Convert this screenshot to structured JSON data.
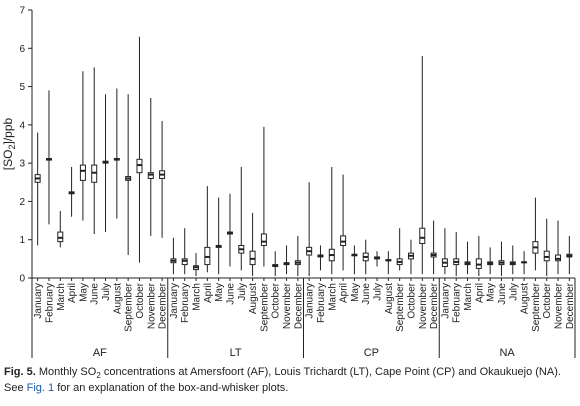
{
  "chart_data": {
    "type": "box",
    "y_label": {
      "before": "[SO",
      "sub": "2",
      "after": "]/ppb"
    },
    "ylim": [
      0,
      7
    ],
    "yticks": [
      0,
      1,
      2,
      3,
      4,
      5,
      6,
      7
    ],
    "groups": [
      {
        "name": "AF",
        "categories": [
          "January",
          "February",
          "March",
          "April",
          "May",
          "June",
          "July",
          "August",
          "September",
          "October",
          "November",
          "December"
        ],
        "low": [
          0.85,
          1.4,
          0.8,
          1.6,
          1.5,
          1.15,
          1.2,
          1.55,
          0.6,
          0.4,
          1.1,
          1.05
        ],
        "q1": [
          2.5,
          3.08,
          0.95,
          2.2,
          2.55,
          2.5,
          3.0,
          3.08,
          2.55,
          2.75,
          2.6,
          2.6
        ],
        "median": [
          2.6,
          3.1,
          1.05,
          2.22,
          2.8,
          2.75,
          3.02,
          3.1,
          2.6,
          2.95,
          2.7,
          2.7
        ],
        "q3": [
          2.7,
          3.12,
          1.2,
          2.25,
          2.95,
          2.95,
          3.05,
          3.12,
          2.65,
          3.1,
          2.75,
          2.8
        ],
        "high": [
          3.8,
          4.9,
          1.75,
          2.9,
          5.4,
          5.5,
          4.8,
          4.95,
          4.8,
          6.3,
          4.7,
          4.1
        ]
      },
      {
        "name": "LT",
        "categories": [
          "January",
          "February",
          "March",
          "April",
          "May",
          "June",
          "July",
          "August",
          "September",
          "October",
          "November",
          "December"
        ],
        "low": [
          0.1,
          0.1,
          0.05,
          0.15,
          0.1,
          0.3,
          0.2,
          0.05,
          0.3,
          0.05,
          0.1,
          0.05
        ],
        "q1": [
          0.4,
          0.35,
          0.22,
          0.35,
          0.8,
          1.15,
          0.65,
          0.35,
          0.85,
          0.3,
          0.35,
          0.35
        ],
        "median": [
          0.45,
          0.45,
          0.28,
          0.55,
          0.82,
          1.18,
          0.75,
          0.5,
          0.95,
          0.32,
          0.38,
          0.4
        ],
        "q3": [
          0.5,
          0.5,
          0.32,
          0.8,
          0.85,
          1.2,
          0.85,
          0.7,
          1.15,
          0.35,
          0.4,
          0.45
        ],
        "high": [
          1.05,
          1.3,
          0.65,
          2.4,
          2.1,
          2.2,
          2.9,
          1.7,
          3.95,
          0.7,
          0.85,
          1.1
        ]
      },
      {
        "name": "CP",
        "categories": [
          "January",
          "February",
          "March",
          "April",
          "May",
          "June",
          "July",
          "August",
          "September",
          "October",
          "November",
          "December"
        ],
        "low": [
          0.05,
          0.2,
          0.1,
          0.2,
          0.1,
          0.1,
          0.3,
          0.1,
          0.2,
          0.1,
          0.1,
          0.1
        ],
        "q1": [
          0.6,
          0.55,
          0.45,
          0.85,
          0.58,
          0.45,
          0.5,
          0.45,
          0.35,
          0.5,
          0.9,
          0.55
        ],
        "median": [
          0.7,
          0.58,
          0.6,
          0.95,
          0.6,
          0.55,
          0.52,
          0.46,
          0.42,
          0.58,
          1.05,
          0.6
        ],
        "q3": [
          0.8,
          0.6,
          0.75,
          1.1,
          0.62,
          0.65,
          0.55,
          0.48,
          0.5,
          0.65,
          1.3,
          0.65
        ],
        "high": [
          2.5,
          0.85,
          2.9,
          2.7,
          0.85,
          1.0,
          0.7,
          0.7,
          1.3,
          1.0,
          5.8,
          1.5
        ]
      },
      {
        "name": "NA",
        "categories": [
          "January",
          "February",
          "March",
          "April",
          "May",
          "June",
          "July",
          "August",
          "September",
          "October",
          "November",
          "December"
        ],
        "low": [
          0.1,
          0.05,
          0.1,
          0.05,
          0.1,
          0.05,
          0.1,
          0.1,
          0.2,
          0.05,
          0.1,
          0.1
        ],
        "q1": [
          0.3,
          0.35,
          0.35,
          0.25,
          0.35,
          0.35,
          0.35,
          0.4,
          0.65,
          0.45,
          0.45,
          0.55
        ],
        "median": [
          0.4,
          0.42,
          0.38,
          0.35,
          0.38,
          0.4,
          0.38,
          0.41,
          0.8,
          0.55,
          0.5,
          0.58
        ],
        "q3": [
          0.5,
          0.5,
          0.42,
          0.5,
          0.42,
          0.45,
          0.42,
          0.42,
          0.95,
          0.7,
          0.6,
          0.62
        ],
        "high": [
          1.3,
          1.2,
          0.95,
          1.1,
          0.8,
          0.95,
          0.85,
          0.7,
          2.1,
          1.55,
          1.5,
          1.1
        ]
      }
    ]
  },
  "caption": {
    "label": "Fig. 5.",
    "text1": "Monthly SO",
    "sub": "2",
    "text2": "concentrations at Amersfoort (AF), Louis Trichardt (LT), Cape Point (CP) and Okaukuejo (NA).",
    "text3": "See",
    "link": "Fig. 1",
    "text4": "for an explanation of the box-and-whisker plots."
  }
}
